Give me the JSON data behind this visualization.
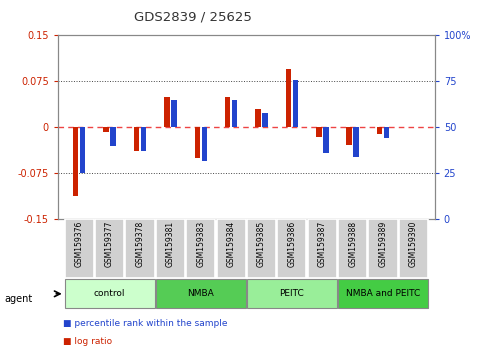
{
  "title": "GDS2839 / 25625",
  "samples": [
    "GSM159376",
    "GSM159377",
    "GSM159378",
    "GSM159381",
    "GSM159383",
    "GSM159384",
    "GSM159385",
    "GSM159386",
    "GSM159387",
    "GSM159388",
    "GSM159389",
    "GSM159390"
  ],
  "log_ratio": [
    -0.112,
    -0.008,
    -0.038,
    0.05,
    -0.05,
    0.05,
    0.03,
    0.095,
    -0.015,
    -0.028,
    -0.01,
    0.001
  ],
  "percentile": [
    25,
    40,
    37,
    65,
    32,
    65,
    58,
    76,
    36,
    34,
    44,
    50
  ],
  "groups": [
    {
      "label": "control",
      "start": 0,
      "end": 3,
      "color": "#ccffcc"
    },
    {
      "label": "NMBA",
      "start": 3,
      "end": 6,
      "color": "#55cc55"
    },
    {
      "label": "PEITC",
      "start": 6,
      "end": 9,
      "color": "#99ee99"
    },
    {
      "label": "NMBA and PEITC",
      "start": 9,
      "end": 12,
      "color": "#44cc44"
    }
  ],
  "ylim_left": [
    -0.15,
    0.15
  ],
  "ylim_right": [
    0,
    100
  ],
  "yticks_left": [
    -0.15,
    -0.075,
    0,
    0.075,
    0.15
  ],
  "yticks_right": [
    0,
    25,
    50,
    75,
    100
  ],
  "bar_width": 0.18,
  "bar_gap": 0.05,
  "log_ratio_color": "#cc2200",
  "percentile_color": "#2244cc",
  "zero_line_color": "#ee4444",
  "dotted_line_color": "#444444",
  "left_axis_color": "#cc2200",
  "right_axis_color": "#2244cc",
  "title_color": "#333333"
}
